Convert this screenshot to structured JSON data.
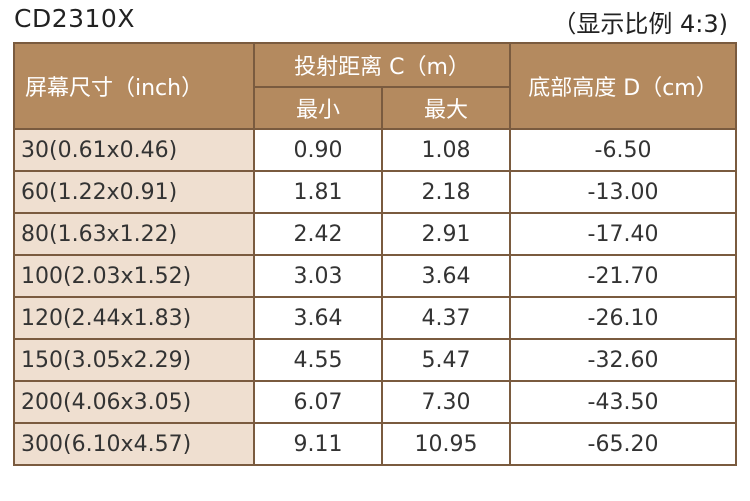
{
  "header": {
    "model": "CD2310X",
    "ratio_note": "（显示比例 4:3)"
  },
  "table": {
    "col_screen_size": "屏幕尺寸（inch）",
    "col_throw_distance": "投射距离 C（m）",
    "col_min": "最小",
    "col_max": "最大",
    "col_bottom_height": "底部高度 D（cm）",
    "rows": [
      {
        "size": "30(0.61x0.46)",
        "min": "0.90",
        "max": "1.08",
        "height": "-6.50"
      },
      {
        "size": "60(1.22x0.91)",
        "min": "1.81",
        "max": "2.18",
        "height": "-13.00"
      },
      {
        "size": "80(1.63x1.22)",
        "min": "2.42",
        "max": "2.91",
        "height": "-17.40"
      },
      {
        "size": "100(2.03x1.52)",
        "min": "3.03",
        "max": "3.64",
        "height": "-21.70"
      },
      {
        "size": "120(2.44x1.83)",
        "min": "3.64",
        "max": "4.37",
        "height": "-26.10"
      },
      {
        "size": "150(3.05x2.29)",
        "min": "4.55",
        "max": "5.47",
        "height": "-32.60"
      },
      {
        "size": "200(4.06x3.05)",
        "min": "6.07",
        "max": "7.30",
        "height": "-43.50"
      },
      {
        "size": "300(6.10x4.57)",
        "min": "9.11",
        "max": "10.95",
        "height": "-65.20"
      }
    ]
  },
  "colors": {
    "header_bg": "#b48a5f",
    "size_cell_bg": "#efdfd0",
    "border": "#7a5b3f"
  }
}
